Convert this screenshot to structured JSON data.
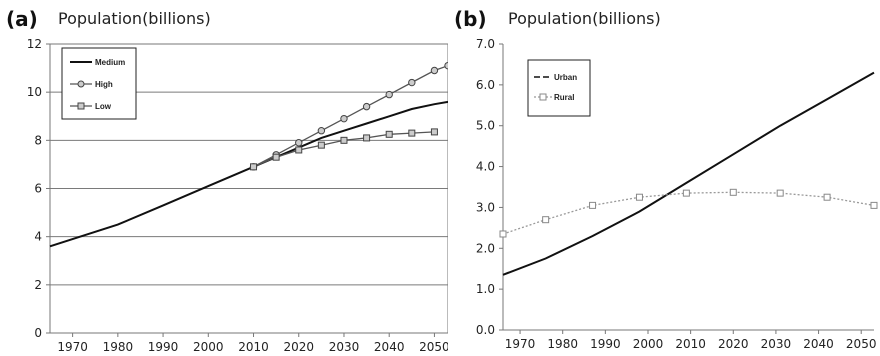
{
  "chart_data": [
    {
      "panel_label": "(a)",
      "title": "Population(billions)",
      "type": "line",
      "xlabel": "",
      "ylabel": "",
      "xlim": [
        1965,
        2053
      ],
      "ylim": [
        0,
        12
      ],
      "x_ticks": [
        1970,
        1980,
        1990,
        2000,
        2010,
        2020,
        2030,
        2040,
        2050
      ],
      "y_ticks": [
        0,
        2,
        4,
        6,
        8,
        10,
        12
      ],
      "grid": "horizontal",
      "legend": "top-left",
      "series": [
        {
          "name": "Medium",
          "marker": "none",
          "color": "#111111",
          "x": [
            1965,
            1970,
            1980,
            1990,
            2000,
            2010,
            2015,
            2020,
            2025,
            2030,
            2035,
            2040,
            2045,
            2050,
            2053
          ],
          "y": [
            3.6,
            3.9,
            4.5,
            5.3,
            6.1,
            6.9,
            7.3,
            7.7,
            8.1,
            8.4,
            8.7,
            9.0,
            9.3,
            9.5,
            9.6
          ]
        },
        {
          "name": "High",
          "marker": "circle",
          "color": "#555555",
          "x": [
            2010,
            2015,
            2020,
            2025,
            2030,
            2035,
            2040,
            2045,
            2050,
            2053
          ],
          "y": [
            6.9,
            7.4,
            7.9,
            8.4,
            8.9,
            9.4,
            9.9,
            10.4,
            10.9,
            11.1
          ]
        },
        {
          "name": "Low",
          "marker": "square",
          "color": "#555555",
          "x": [
            2010,
            2015,
            2020,
            2025,
            2030,
            2035,
            2040,
            2045,
            2050
          ],
          "y": [
            6.9,
            7.3,
            7.6,
            7.8,
            8.0,
            8.1,
            8.25,
            8.3,
            8.35
          ]
        }
      ]
    },
    {
      "panel_label": "(b)",
      "title": "Population(billions)",
      "type": "line",
      "xlabel": "",
      "ylabel": "",
      "xlim": [
        1966,
        2053
      ],
      "ylim": [
        0,
        7
      ],
      "x_ticks": [
        1970,
        1980,
        1990,
        2000,
        2010,
        2020,
        2030,
        2040,
        2050
      ],
      "y_ticks": [
        "0.0",
        "1.0",
        "2.0",
        "3.0",
        "4.0",
        "5.0",
        "6.0",
        "7.0"
      ],
      "grid": "none",
      "legend": "top-left",
      "series": [
        {
          "name": "Urban",
          "marker": "none",
          "color": "#111111",
          "dash": "solid",
          "x": [
            1966,
            1976,
            1987,
            1998,
            2009,
            2020,
            2031,
            2042,
            2053
          ],
          "y": [
            1.35,
            1.75,
            2.3,
            2.9,
            3.6,
            4.3,
            5.0,
            5.65,
            6.3
          ]
        },
        {
          "name": "Rural",
          "marker": "square",
          "color": "#999999",
          "dash": "dotted",
          "x": [
            1966,
            1976,
            1987,
            1998,
            2009,
            2020,
            2031,
            2042,
            2053
          ],
          "y": [
            2.35,
            2.7,
            3.05,
            3.25,
            3.35,
            3.37,
            3.35,
            3.25,
            3.05
          ]
        }
      ]
    }
  ]
}
